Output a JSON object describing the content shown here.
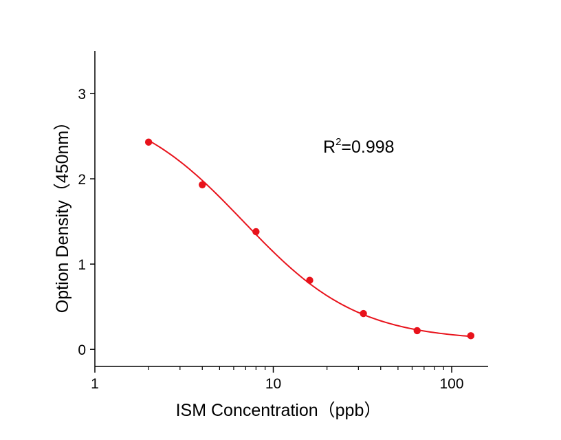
{
  "chart_data": {
    "type": "scatter",
    "xlabel": "ISM Concentration（ppb）",
    "ylabel": "Option Density（450nm）",
    "x_scale": "log",
    "xlim": [
      1,
      160
    ],
    "ylim": [
      -0.2,
      3.5
    ],
    "x_ticks": [
      1,
      10,
      100
    ],
    "x_tick_labels": [
      "1",
      "10",
      "100"
    ],
    "y_ticks": [
      0,
      1,
      2,
      3
    ],
    "y_tick_labels": [
      "0",
      "1",
      "2",
      "3"
    ],
    "grid": false,
    "series": [
      {
        "x": [
          2,
          4,
          8,
          16,
          32,
          64,
          128
        ],
        "y": [
          2.43,
          1.93,
          1.38,
          0.81,
          0.42,
          0.22,
          0.16
        ],
        "color": "#e8121b",
        "fit_curve": "4PL"
      }
    ],
    "fit": {
      "top": 2.9,
      "bottom": 0.1,
      "ec50": 6.8,
      "hill": 1.35
    },
    "annotation": {
      "base": "R",
      "sup": "2",
      "rest": "=0.998"
    }
  }
}
